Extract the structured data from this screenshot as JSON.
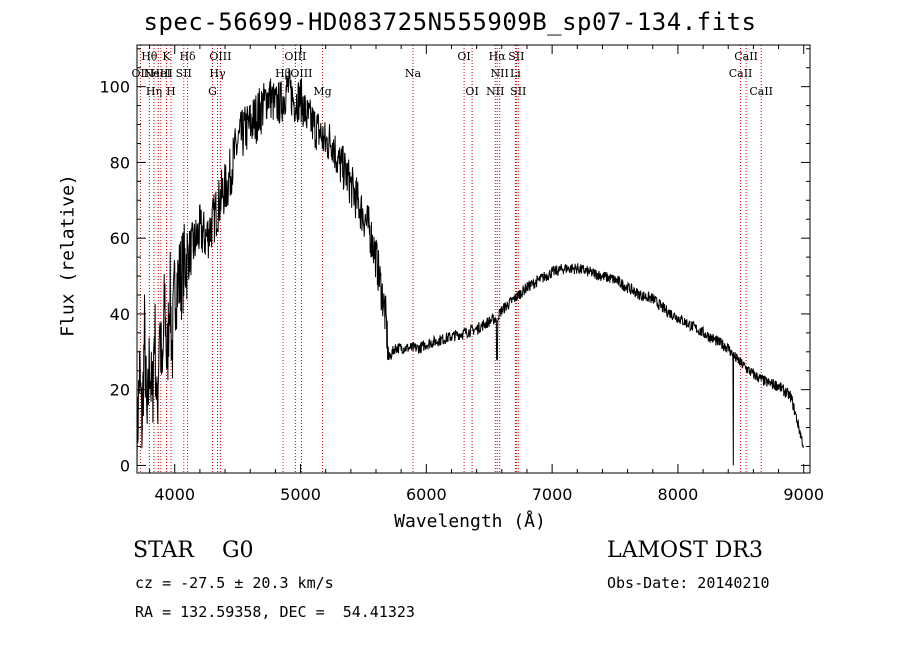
{
  "page": {
    "title": "spec-56699-HD083725N555909B_sp07-134.fits",
    "class_label": "STAR    G0",
    "cz_label": "cz = -27.5 ± 20.3 km/s",
    "radec_label": "RA = 132.59358, DEC =  54.41323",
    "survey_label": "LAMOST DR3",
    "obsdate_label": "Obs-Date: 20140210"
  },
  "colors": {
    "line": "#000000",
    "marker": "#cc0000",
    "background": "#ffffff"
  },
  "chart_data": {
    "type": "line",
    "title": "spec-56699-HD083725N555909B_sp07-134.fits",
    "xlabel": "Wavelength (Å)",
    "ylabel": "Flux (relative)",
    "xlim": [
      3700,
      9050
    ],
    "ylim": [
      -2,
      111
    ],
    "xticks": [
      4000,
      5000,
      6000,
      7000,
      8000,
      9000
    ],
    "yticks": [
      0,
      20,
      40,
      60,
      80,
      100
    ],
    "grid": false,
    "series": [
      {
        "x": [
          3700,
          3720,
          3740,
          3760,
          3780,
          3800,
          3820,
          3840,
          3860,
          3880,
          3900,
          3920,
          3940,
          3960,
          3980,
          4000,
          4050,
          4100,
          4150,
          4200,
          4250,
          4300,
          4340,
          4380,
          4420,
          4460,
          4500,
          4550,
          4600,
          4650,
          4700,
          4750,
          4800,
          4850,
          4900,
          4950,
          5000,
          5050,
          5100,
          5150,
          5200,
          5250,
          5300,
          5350,
          5400,
          5450,
          5500,
          5550,
          5600,
          5650,
          5680,
          5700,
          5750,
          5800,
          5850,
          5900,
          5950,
          6000,
          6100,
          6200,
          6300,
          6400,
          6500,
          6560,
          6600,
          6700,
          6800,
          6900,
          7000,
          7100,
          7200,
          7300,
          7400,
          7500,
          7600,
          7700,
          7800,
          7900,
          8000,
          8100,
          8200,
          8300,
          8400,
          8440,
          8500,
          8600,
          8700,
          8800,
          8900,
          9000
        ],
        "y": [
          5,
          25,
          10,
          35,
          8,
          30,
          15,
          38,
          12,
          40,
          20,
          45,
          25,
          48,
          30,
          47,
          50,
          55,
          58,
          62,
          60,
          64,
          68,
          72,
          74,
          80,
          85,
          88,
          90,
          92,
          95,
          98,
          95,
          96,
          100,
          96,
          97,
          92,
          90,
          88,
          85,
          86,
          80,
          78,
          74,
          70,
          66,
          62,
          55,
          45,
          38,
          28,
          31,
          31,
          31,
          31,
          31,
          32,
          33,
          34,
          35,
          36,
          38,
          39,
          41,
          44,
          47,
          49,
          51,
          52,
          52,
          51,
          50,
          49,
          47,
          45,
          44,
          41,
          39,
          37,
          35,
          33,
          31,
          29,
          27,
          24,
          22,
          21,
          18,
          5
        ]
      }
    ],
    "markers": [
      {
        "x": 3727,
        "label": "OII",
        "row": 2
      },
      {
        "x": 3798,
        "label": "Hθ",
        "row": 1
      },
      {
        "x": 3835,
        "label": "Hη",
        "row": 3
      },
      {
        "x": 3869,
        "label": "NeIII",
        "row": 2
      },
      {
        "x": 3889,
        "label": "HeI",
        "row": 2
      },
      {
        "x": 3934,
        "label": "K",
        "row": 1
      },
      {
        "x": 3970,
        "label": "H",
        "row": 3
      },
      {
        "x": 4072,
        "label": "SII",
        "row": 2
      },
      {
        "x": 4102,
        "label": "Hδ",
        "row": 1
      },
      {
        "x": 4300,
        "label": "G",
        "row": 3
      },
      {
        "x": 4340,
        "label": "Hγ",
        "row": 2
      },
      {
        "x": 4363,
        "label": "OIII",
        "row": 1
      },
      {
        "x": 4861,
        "label": "Hβ",
        "row": 2
      },
      {
        "x": 4959,
        "label": "OIII",
        "row": 1
      },
      {
        "x": 5007,
        "label": "OIII",
        "row": 2
      },
      {
        "x": 5175,
        "label": "Mg",
        "row": 3
      },
      {
        "x": 5894,
        "label": "Na",
        "row": 2
      },
      {
        "x": 6300,
        "label": "OI",
        "row": 1
      },
      {
        "x": 6364,
        "label": "OI",
        "row": 3
      },
      {
        "x": 6548,
        "label": "NII",
        "row": 3
      },
      {
        "x": 6563,
        "label": "Hα",
        "row": 1
      },
      {
        "x": 6583,
        "label": "NII",
        "row": 2
      },
      {
        "x": 6708,
        "label": "Li",
        "row": 2
      },
      {
        "x": 6716,
        "label": "SII",
        "row": 1
      },
      {
        "x": 6731,
        "label": "SII",
        "row": 3
      },
      {
        "x": 8498,
        "label": "CaII",
        "row": 2
      },
      {
        "x": 8542,
        "label": "CaII",
        "row": 1
      },
      {
        "x": 8662,
        "label": "CaII",
        "row": 3
      }
    ]
  }
}
